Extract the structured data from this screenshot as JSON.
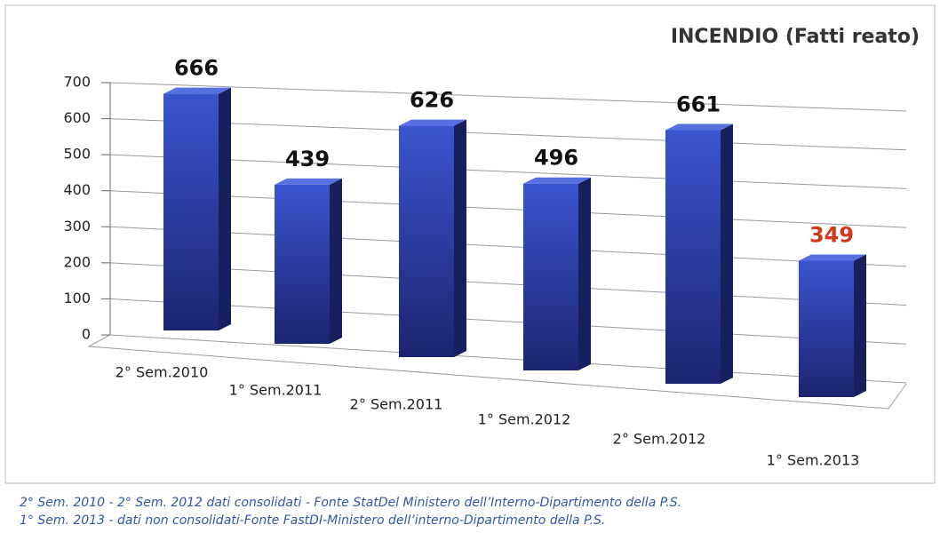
{
  "chart_data": {
    "type": "bar3d",
    "title": "INCENDIO (Fatti reato)",
    "categories": [
      "2° Sem.2010",
      "1° Sem.2011",
      "2° Sem.2011",
      "1° Sem.2012",
      "2° Sem.2012",
      "1° Sem.2013"
    ],
    "values": [
      666,
      439,
      626,
      496,
      661,
      349
    ],
    "color": "#2b3fa8",
    "value_label_colors": [
      "#111111",
      "#111111",
      "#111111",
      "#111111",
      "#111111",
      "#d03a1c"
    ],
    "ylim": [
      0,
      700
    ],
    "yticks": [
      0,
      100,
      200,
      300,
      400,
      500,
      600,
      700
    ],
    "grid": true,
    "notes": [
      "2° Sem. 2010 - 2° Sem. 2012 dati consolidati - Fonte StatDel Ministero dell’Interno-Dipartimento della P.S.",
      "1° Sem. 2013 - dati non consolidati-Fonte FastDI-Ministero dell’interno-Dipartimento della P.S."
    ]
  }
}
